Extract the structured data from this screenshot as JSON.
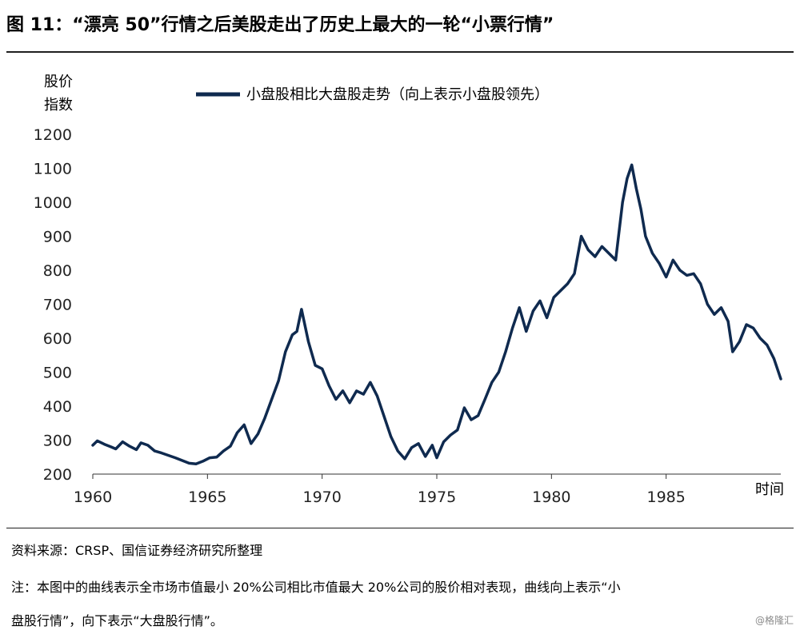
{
  "title": "图  11：“漂亮 50”行情之后美股走出了历史上最大的一轮“小票行情”",
  "source": "资料来源：CRSP、国信证券经济研究所整理",
  "note_line1": "注：本图中的曲线表示全市场市值最小 20%公司相比市值最大 20%公司的股价相对表现，曲线向上表示“小",
  "note_line2": "盘股行情”，向下表示“大盘股行情”。",
  "watermark": "@格隆汇",
  "chart_data": {
    "type": "line",
    "ylabel_line1": "股价",
    "ylabel_line2": "指数",
    "xlabel": "时间",
    "ylim": [
      200,
      1200
    ],
    "xlim": [
      1960,
      1990
    ],
    "y_ticks": [
      200,
      300,
      400,
      500,
      600,
      700,
      800,
      900,
      1000,
      1100,
      1200
    ],
    "x_ticks": [
      1960,
      1965,
      1970,
      1975,
      1980,
      1985
    ],
    "grid": false,
    "legend_position": "top",
    "series_color": "#0f2a4f",
    "series": [
      {
        "name": "小盘股相比大盘股走势（向上表示小盘股领先）",
        "x": [
          1960.0,
          1960.2,
          1960.5,
          1960.8,
          1961.0,
          1961.3,
          1961.6,
          1961.9,
          1962.1,
          1962.4,
          1962.7,
          1963.0,
          1963.3,
          1963.6,
          1963.9,
          1964.2,
          1964.5,
          1964.8,
          1965.1,
          1965.4,
          1965.7,
          1966.0,
          1966.3,
          1966.6,
          1966.9,
          1967.2,
          1967.5,
          1967.8,
          1968.1,
          1968.4,
          1968.7,
          1968.9,
          1969.1,
          1969.4,
          1969.7,
          1970.0,
          1970.3,
          1970.6,
          1970.9,
          1971.2,
          1971.5,
          1971.8,
          1972.1,
          1972.4,
          1972.7,
          1973.0,
          1973.3,
          1973.6,
          1973.9,
          1974.2,
          1974.5,
          1974.8,
          1975.0,
          1975.3,
          1975.6,
          1975.9,
          1976.2,
          1976.5,
          1976.8,
          1977.1,
          1977.4,
          1977.7,
          1978.0,
          1978.3,
          1978.6,
          1978.9,
          1979.2,
          1979.5,
          1979.8,
          1980.1,
          1980.4,
          1980.7,
          1981.0,
          1981.3,
          1981.6,
          1981.9,
          1982.2,
          1982.5,
          1982.8,
          1983.1,
          1983.3,
          1983.5,
          1983.7,
          1983.9,
          1984.1,
          1984.4,
          1984.7,
          1985.0,
          1985.3,
          1985.6,
          1985.9,
          1986.2,
          1986.5,
          1986.8,
          1987.1,
          1987.4,
          1987.7,
          1987.9,
          1988.2,
          1988.5,
          1988.8,
          1989.1,
          1989.4,
          1989.7,
          1990.0
        ],
        "values": [
          285,
          298,
          288,
          280,
          274,
          295,
          282,
          272,
          292,
          285,
          268,
          262,
          255,
          248,
          240,
          232,
          230,
          238,
          248,
          250,
          268,
          282,
          322,
          345,
          290,
          318,
          365,
          420,
          475,
          560,
          610,
          620,
          685,
          590,
          520,
          510,
          460,
          420,
          445,
          410,
          445,
          435,
          470,
          430,
          370,
          310,
          268,
          245,
          278,
          290,
          252,
          285,
          248,
          295,
          315,
          330,
          395,
          360,
          372,
          420,
          470,
          500,
          560,
          630,
          690,
          620,
          680,
          710,
          660,
          720,
          740,
          760,
          790,
          900,
          860,
          840,
          870,
          850,
          830,
          1000,
          1070,
          1110,
          1040,
          980,
          900,
          850,
          820,
          780,
          830,
          800,
          785,
          790,
          760,
          700,
          670,
          690,
          650,
          560,
          590,
          640,
          630,
          600,
          580,
          540,
          480
        ]
      }
    ]
  }
}
